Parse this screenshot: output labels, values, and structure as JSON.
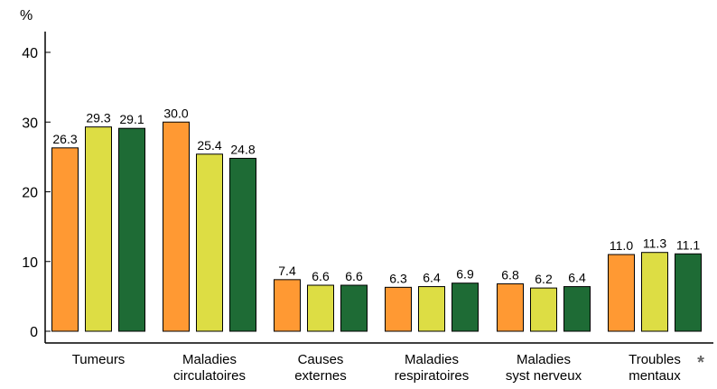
{
  "chart_data": {
    "type": "bar",
    "ylabel": "%",
    "ylim": [
      0,
      40
    ],
    "yticks": [
      "0",
      "10",
      "20",
      "30",
      "40"
    ],
    "categories": [
      [
        "Tumeurs"
      ],
      [
        "Maladies",
        "circulatoires"
      ],
      [
        "Causes",
        "externes"
      ],
      [
        "Maladies",
        "respiratoires"
      ],
      [
        "Maladies",
        "syst nerveux"
      ],
      [
        "Troubles",
        "mentaux"
      ]
    ],
    "annotation": "*",
    "series": [
      {
        "color": "#ff9933",
        "values": [
          26.3,
          30.0,
          7.4,
          6.3,
          6.8,
          11.0
        ],
        "labels": [
          "26.3",
          "30.0",
          "7.4",
          "6.3",
          "6.8",
          "11.0"
        ]
      },
      {
        "color": "#dddd44",
        "values": [
          29.3,
          25.4,
          6.6,
          6.4,
          6.2,
          11.3
        ],
        "labels": [
          "29.3",
          "25.4",
          "6.6",
          "6.4",
          "6.2",
          "11.3"
        ]
      },
      {
        "color": "#1e6b35",
        "values": [
          29.1,
          24.8,
          6.6,
          6.9,
          6.4,
          11.1
        ],
        "labels": [
          "29.1",
          "24.8",
          "6.6",
          "6.9",
          "6.4",
          "11.1"
        ]
      }
    ],
    "grid": false,
    "legend": "none"
  }
}
